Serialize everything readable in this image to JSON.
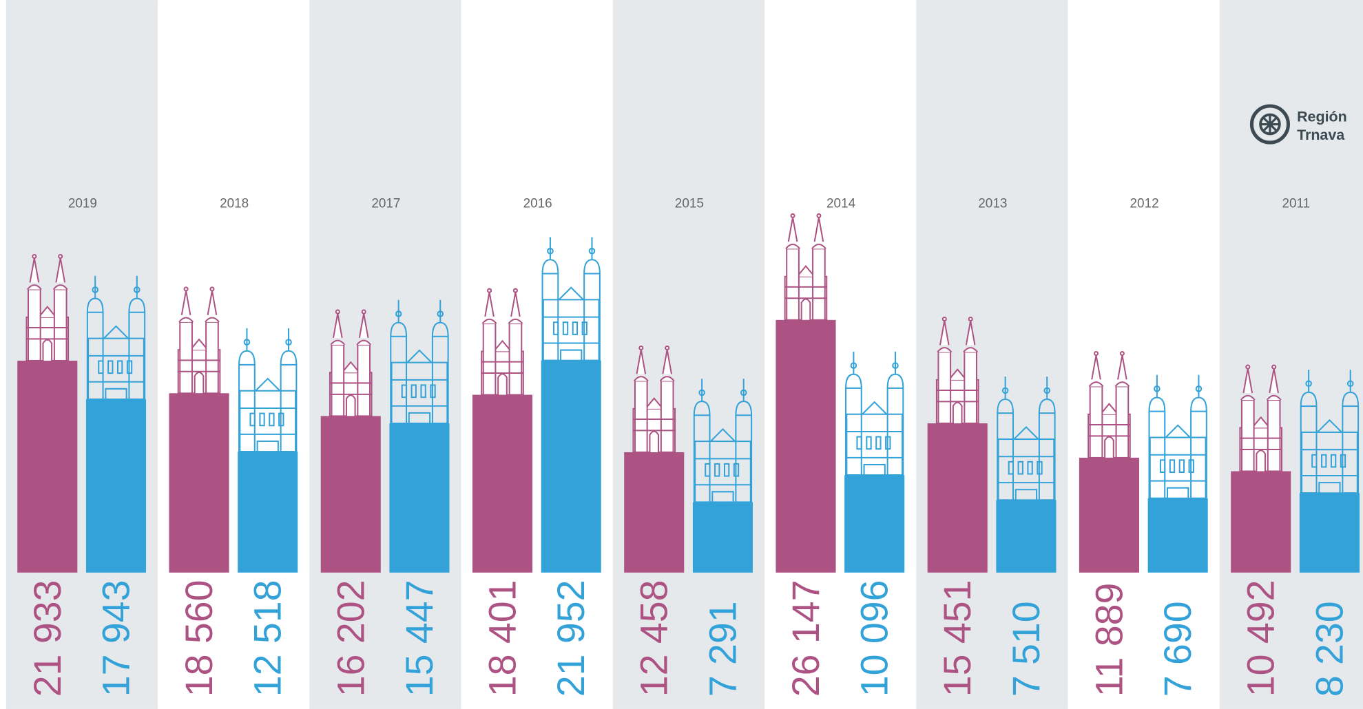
{
  "chart_data": {
    "type": "bar",
    "categories": [
      "2019",
      "2018",
      "2017",
      "2016",
      "2015",
      "2014",
      "2013",
      "2012",
      "2011"
    ],
    "series": [
      {
        "color": "#ad5384",
        "values": [
          21933,
          18560,
          16202,
          18401,
          12458,
          26147,
          15451,
          11889,
          10492
        ],
        "value_labels": [
          "21 933",
          "18 560",
          "16 202",
          "18 401",
          "12 458",
          "26 147",
          "15 451",
          "11 889",
          "10 492"
        ]
      },
      {
        "color": "#33a2d9",
        "values": [
          17943,
          12518,
          15447,
          21952,
          7291,
          10096,
          7510,
          7690,
          8230
        ],
        "value_labels": [
          "17 943",
          "12 518",
          "15 447",
          "21 952",
          "7 291",
          "10 096",
          "7 510",
          "7 690",
          "8 230"
        ]
      }
    ],
    "logo": [
      "Región",
      "Trnava"
    ]
  }
}
